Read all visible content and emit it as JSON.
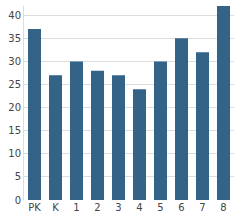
{
  "chart_data": {
    "type": "bar",
    "categories": [
      "PK",
      "K",
      "1",
      "2",
      "3",
      "4",
      "5",
      "6",
      "7",
      "8"
    ],
    "values": [
      37,
      27,
      30,
      28,
      27,
      24,
      30,
      35,
      32,
      42
    ],
    "color": "#336387",
    "ylim": [
      0,
      42
    ],
    "yticks": [
      0,
      5,
      10,
      15,
      20,
      25,
      30,
      35,
      40
    ],
    "grid": true
  }
}
